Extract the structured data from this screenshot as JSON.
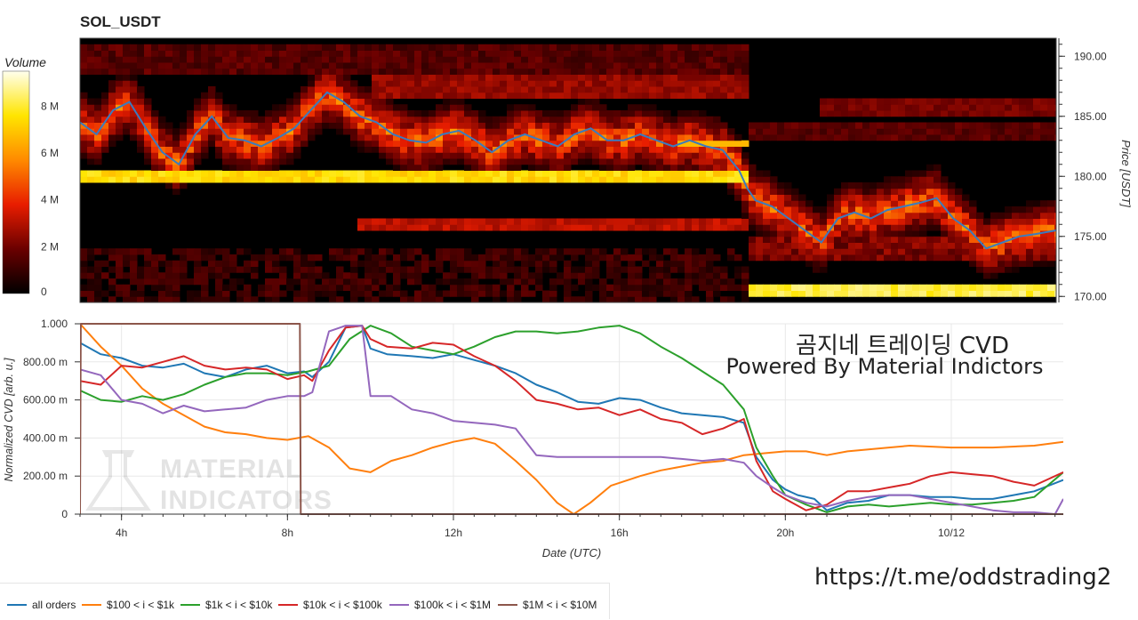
{
  "header": {
    "title": "SOL_USDT"
  },
  "annotations": {
    "line1": "곰지네 트레이딩 CVD",
    "line2": "Powered By Material Indictors",
    "url": "https://t.me/oddstrading2",
    "watermark_line1": "MATERIAL",
    "watermark_line2": "INDICATORS"
  },
  "colors": {
    "all_orders": "#1f77b4",
    "s100_1k": "#ff7f0e",
    "s1k_10k": "#2ca02c",
    "s10k_100k": "#d62728",
    "s100k_1m": "#9467bd",
    "s1m_10m": "#8c564b",
    "price_line": "#3a7bbf"
  },
  "chart_data": [
    {
      "type": "heatmap",
      "title": "SOL_USDT",
      "colorbar_label": "Volume",
      "colorbar_ticks": [
        "0",
        "2 M",
        "4 M",
        "6 M",
        "8 M"
      ],
      "colorbar_values": [
        0,
        2000000,
        4000000,
        6000000,
        8000000
      ],
      "colorscale": [
        "#000000",
        "#6a0000",
        "#e81d00",
        "#ff8a00",
        "#ffe500",
        "#ffffee"
      ],
      "ylabel": "Price [USDT]",
      "y_ticks": [
        "190.00",
        "185.00",
        "180.00",
        "175.00",
        "170.00"
      ],
      "y_tick_values": [
        190,
        185,
        180,
        175,
        170
      ],
      "ylim": [
        169.5,
        191.5
      ],
      "xlim": [
        3.0,
        26.7
      ],
      "price_line": {
        "x": [
          3.0,
          3.4,
          3.8,
          4.2,
          4.6,
          5.0,
          5.4,
          5.8,
          6.2,
          6.6,
          7.0,
          7.4,
          7.8,
          8.2,
          8.6,
          9.0,
          9.4,
          9.8,
          10.2,
          10.6,
          11.0,
          11.4,
          11.8,
          12.2,
          12.6,
          13.0,
          13.4,
          13.8,
          14.2,
          14.6,
          15.0,
          15.4,
          15.8,
          16.2,
          16.6,
          17.0,
          17.4,
          17.8,
          18.2,
          18.6,
          19.0,
          19.2,
          19.4,
          19.8,
          20.2,
          20.6,
          21.0,
          21.4,
          21.8,
          22.2,
          22.6,
          23.0,
          23.4,
          23.8,
          24.2,
          24.6,
          25.0,
          25.4,
          25.8,
          26.2,
          26.7
        ],
        "y": [
          184.5,
          183.5,
          185.5,
          186.2,
          184.0,
          182.0,
          181.0,
          183.5,
          185.0,
          183.2,
          183.0,
          182.5,
          183.2,
          184.0,
          185.5,
          187.0,
          186.2,
          185.0,
          184.5,
          183.5,
          183.0,
          182.8,
          183.5,
          183.8,
          183.0,
          182.0,
          183.0,
          183.5,
          183.0,
          182.5,
          183.5,
          184.0,
          183.0,
          183.0,
          183.5,
          183.0,
          182.5,
          183.0,
          182.5,
          182.2,
          180.5,
          179.0,
          178.0,
          177.5,
          176.5,
          175.5,
          174.5,
          176.5,
          177.0,
          176.5,
          177.2,
          177.5,
          177.8,
          178.2,
          176.5,
          175.5,
          174.0,
          174.5,
          175.0,
          175.2,
          175.5
        ]
      }
    },
    {
      "type": "line",
      "xlabel": "Date (UTC)",
      "ylabel": "Normalized CVD [arb. u.]",
      "x_ticks": [
        "4h",
        "8h",
        "12h",
        "16h",
        "20h",
        "10/12"
      ],
      "x_tick_values": [
        4,
        8,
        12,
        16,
        20,
        24
      ],
      "xlim": [
        3.0,
        26.7
      ],
      "y_ticks": [
        "0",
        "200.00 m",
        "400.00 m",
        "600.00 m",
        "800.00 m",
        "1.000"
      ],
      "y_tick_values": [
        0,
        0.2,
        0.4,
        0.6,
        0.8,
        1.0
      ],
      "ylim": [
        0,
        1.0
      ],
      "series": [
        {
          "name": "all orders",
          "color_key": "all_orders",
          "x": [
            3.0,
            3.5,
            4.0,
            4.5,
            5.0,
            5.5,
            6.0,
            6.5,
            7.0,
            7.5,
            8.0,
            8.4,
            8.6,
            9.0,
            9.4,
            9.8,
            10.0,
            10.4,
            11.0,
            11.5,
            12.0,
            12.5,
            13.0,
            13.5,
            14.0,
            14.5,
            15.0,
            15.5,
            16.0,
            16.5,
            17.0,
            17.5,
            18.0,
            18.5,
            19.0,
            19.3,
            19.7,
            20.0,
            20.3,
            20.7,
            21.0,
            21.5,
            22.0,
            22.5,
            23.0,
            23.5,
            24.0,
            24.5,
            25.0,
            25.5,
            26.0,
            26.7
          ],
          "y": [
            0.9,
            0.84,
            0.82,
            0.78,
            0.77,
            0.79,
            0.74,
            0.72,
            0.76,
            0.78,
            0.74,
            0.75,
            0.72,
            0.8,
            0.98,
            0.99,
            0.87,
            0.84,
            0.83,
            0.82,
            0.84,
            0.81,
            0.78,
            0.74,
            0.68,
            0.64,
            0.59,
            0.58,
            0.61,
            0.6,
            0.56,
            0.53,
            0.52,
            0.51,
            0.48,
            0.3,
            0.18,
            0.13,
            0.1,
            0.08,
            0.02,
            0.06,
            0.07,
            0.1,
            0.1,
            0.09,
            0.09,
            0.08,
            0.08,
            0.1,
            0.12,
            0.18
          ]
        },
        {
          "name": "$100 < i < $1k",
          "color_key": "s100_1k",
          "x": [
            3.0,
            3.5,
            4.0,
            4.5,
            5.0,
            5.5,
            6.0,
            6.5,
            7.0,
            7.5,
            8.0,
            8.5,
            9.0,
            9.5,
            10.0,
            10.5,
            11.0,
            11.5,
            12.0,
            12.5,
            13.0,
            13.5,
            14.0,
            14.5,
            14.9,
            15.3,
            15.8,
            16.5,
            17.0,
            17.5,
            18.0,
            18.5,
            19.0,
            19.5,
            20.0,
            20.5,
            21.0,
            21.5,
            22.0,
            22.5,
            23.0,
            24.0,
            25.0,
            26.0,
            26.7
          ],
          "y": [
            1.0,
            0.88,
            0.78,
            0.66,
            0.58,
            0.52,
            0.46,
            0.43,
            0.42,
            0.4,
            0.39,
            0.41,
            0.35,
            0.24,
            0.22,
            0.28,
            0.31,
            0.35,
            0.38,
            0.4,
            0.37,
            0.28,
            0.18,
            0.06,
            0.0,
            0.06,
            0.15,
            0.2,
            0.23,
            0.25,
            0.27,
            0.28,
            0.31,
            0.32,
            0.33,
            0.33,
            0.31,
            0.33,
            0.34,
            0.35,
            0.36,
            0.35,
            0.35,
            0.36,
            0.38
          ]
        },
        {
          "name": "$1k < i < $10k",
          "color_key": "s1k_10k",
          "x": [
            3.0,
            3.5,
            4.0,
            4.5,
            5.0,
            5.5,
            6.0,
            6.5,
            7.0,
            7.5,
            8.0,
            8.5,
            9.0,
            9.5,
            10.0,
            10.5,
            11.0,
            11.5,
            12.0,
            12.5,
            13.0,
            13.5,
            14.0,
            14.5,
            15.0,
            15.5,
            16.0,
            16.5,
            17.0,
            17.5,
            18.0,
            18.5,
            19.0,
            19.3,
            19.7,
            20.0,
            20.5,
            21.0,
            21.5,
            22.0,
            22.5,
            23.0,
            23.5,
            24.0,
            24.5,
            25.0,
            25.5,
            26.0,
            26.7
          ],
          "y": [
            0.65,
            0.6,
            0.59,
            0.62,
            0.6,
            0.63,
            0.68,
            0.72,
            0.74,
            0.74,
            0.73,
            0.75,
            0.78,
            0.92,
            0.99,
            0.95,
            0.88,
            0.86,
            0.84,
            0.88,
            0.93,
            0.96,
            0.96,
            0.95,
            0.96,
            0.98,
            0.99,
            0.95,
            0.88,
            0.82,
            0.75,
            0.68,
            0.55,
            0.35,
            0.2,
            0.1,
            0.05,
            0.01,
            0.04,
            0.05,
            0.04,
            0.05,
            0.06,
            0.05,
            0.05,
            0.06,
            0.07,
            0.09,
            0.22
          ]
        },
        {
          "name": "$10k < i < $100k",
          "color_key": "s10k_100k",
          "x": [
            3.0,
            3.5,
            4.0,
            4.5,
            5.0,
            5.5,
            6.0,
            6.5,
            7.0,
            7.5,
            8.0,
            8.4,
            8.6,
            9.0,
            9.4,
            9.8,
            10.0,
            10.4,
            11.0,
            11.5,
            12.0,
            12.5,
            13.0,
            13.5,
            14.0,
            14.5,
            15.0,
            15.5,
            16.0,
            16.5,
            17.0,
            17.5,
            18.0,
            18.5,
            19.0,
            19.3,
            19.7,
            20.0,
            20.5,
            21.0,
            21.5,
            22.0,
            22.5,
            23.0,
            23.5,
            24.0,
            24.5,
            25.0,
            25.5,
            26.0,
            26.7
          ],
          "y": [
            0.7,
            0.68,
            0.78,
            0.77,
            0.8,
            0.83,
            0.78,
            0.76,
            0.77,
            0.76,
            0.71,
            0.73,
            0.7,
            0.86,
            0.98,
            0.99,
            0.92,
            0.88,
            0.87,
            0.9,
            0.89,
            0.83,
            0.78,
            0.7,
            0.6,
            0.58,
            0.55,
            0.56,
            0.52,
            0.55,
            0.5,
            0.48,
            0.42,
            0.45,
            0.5,
            0.28,
            0.12,
            0.08,
            0.02,
            0.05,
            0.12,
            0.12,
            0.14,
            0.16,
            0.2,
            0.22,
            0.21,
            0.2,
            0.17,
            0.15,
            0.22
          ]
        },
        {
          "name": "$100k < i < $1M",
          "color_key": "s100k_1m",
          "x": [
            3.0,
            3.5,
            4.0,
            4.5,
            5.0,
            5.5,
            6.0,
            6.5,
            7.0,
            7.5,
            8.0,
            8.4,
            8.6,
            9.0,
            9.4,
            9.8,
            10.0,
            10.5,
            11.0,
            11.5,
            12.0,
            12.5,
            13.0,
            13.5,
            14.0,
            14.5,
            15.0,
            15.5,
            16.0,
            16.5,
            17.0,
            17.5,
            18.0,
            18.5,
            19.0,
            19.3,
            19.7,
            20.0,
            20.5,
            21.0,
            21.5,
            22.0,
            22.5,
            23.0,
            23.5,
            24.0,
            24.5,
            25.0,
            25.5,
            26.0,
            26.5,
            26.7
          ],
          "y": [
            0.76,
            0.73,
            0.6,
            0.58,
            0.53,
            0.57,
            0.54,
            0.55,
            0.56,
            0.6,
            0.62,
            0.62,
            0.64,
            0.96,
            0.99,
            0.99,
            0.62,
            0.62,
            0.55,
            0.53,
            0.49,
            0.48,
            0.47,
            0.45,
            0.31,
            0.3,
            0.3,
            0.3,
            0.3,
            0.3,
            0.3,
            0.29,
            0.28,
            0.29,
            0.27,
            0.2,
            0.14,
            0.1,
            0.06,
            0.04,
            0.07,
            0.09,
            0.1,
            0.1,
            0.08,
            0.06,
            0.04,
            0.02,
            0.01,
            0.01,
            0.0,
            0.08
          ]
        },
        {
          "name": "$1M < i < $10M",
          "color_key": "s1m_10m",
          "x": [
            3.0,
            3.02,
            8.3,
            8.32,
            26.7
          ],
          "y": [
            0.0,
            1.0,
            1.0,
            0.0,
            0.0
          ]
        }
      ]
    }
  ]
}
